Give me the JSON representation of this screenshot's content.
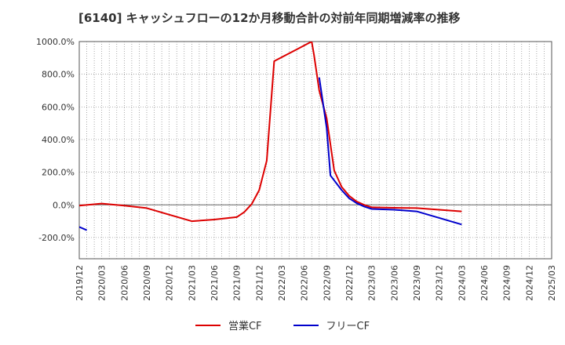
{
  "chart_data": {
    "type": "line",
    "title": "[6140]  キャッシュフローの12か月移動合計の対前年同期増減率の推移",
    "xlabel": "",
    "ylabel": "",
    "ylim": [
      -330,
      1000
    ],
    "yticks": [
      {
        "value": 1000,
        "label": "1000.0%"
      },
      {
        "value": 800,
        "label": "800.0%"
      },
      {
        "value": 600,
        "label": "600.0%"
      },
      {
        "value": 400,
        "label": "400.0%"
      },
      {
        "value": 200,
        "label": "200.0%"
      },
      {
        "value": 0,
        "label": "0.0%"
      },
      {
        "value": -200,
        "label": "-200.0%"
      }
    ],
    "xticks": [
      "2019/12",
      "2020/03",
      "2020/06",
      "2020/09",
      "2020/12",
      "2021/03",
      "2021/06",
      "2021/09",
      "2021/12",
      "2022/03",
      "2022/06",
      "2022/09",
      "2022/12",
      "2023/03",
      "2023/06",
      "2023/09",
      "2023/12",
      "2024/03",
      "2024/06",
      "2024/09",
      "2024/12",
      "2025/03"
    ],
    "grid": true,
    "legend_position": "bottom",
    "series": [
      {
        "name": "営業CF",
        "color": "#dd0000",
        "points": [
          [
            0,
            -5
          ],
          [
            3,
            8
          ],
          [
            6,
            -5
          ],
          [
            9,
            -20
          ],
          [
            12,
            -60
          ],
          [
            15,
            -100
          ],
          [
            18,
            -90
          ],
          [
            21,
            -75
          ],
          [
            22,
            -45
          ],
          [
            23,
            5
          ],
          [
            24,
            90
          ],
          [
            25,
            270
          ],
          [
            26,
            880
          ],
          [
            31,
            1000
          ],
          [
            31.3,
            920
          ],
          [
            32,
            700
          ],
          [
            33,
            530
          ],
          [
            34,
            210
          ],
          [
            35,
            110
          ],
          [
            36,
            55
          ],
          [
            37,
            20
          ],
          [
            38,
            0
          ],
          [
            39,
            -15
          ],
          [
            42,
            -18
          ],
          [
            45,
            -20
          ],
          [
            48,
            -30
          ],
          [
            51,
            -40
          ]
        ]
      },
      {
        "name": "フリーCF",
        "color": "#0000cc",
        "points": [
          [
            0,
            -135
          ],
          [
            1,
            -155
          ]
        ],
        "segments": [
          [
            [
              32,
              780
            ],
            [
              33,
              470
            ],
            [
              33.5,
              180
            ],
            [
              35,
              90
            ],
            [
              36,
              40
            ],
            [
              37,
              10
            ],
            [
              38,
              -10
            ],
            [
              39,
              -25
            ],
            [
              42,
              -30
            ],
            [
              45,
              -40
            ],
            [
              48,
              -80
            ],
            [
              51,
              -120
            ]
          ]
        ]
      }
    ]
  }
}
